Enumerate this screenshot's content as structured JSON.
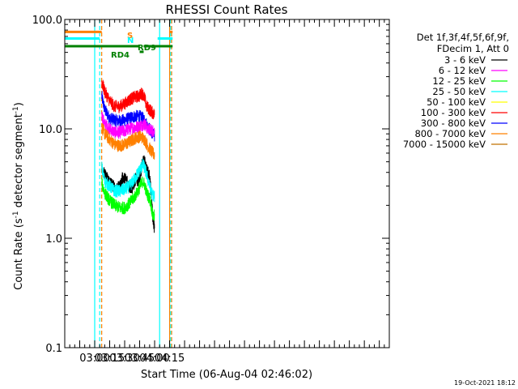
{
  "chart_data": {
    "type": "line",
    "title": "RHESSI Count Rates",
    "xlabel": "Start Time (06-Aug-04 02:46:02)",
    "ylabel_parts": [
      "Count Rate (s",
      "-1",
      " detector segment",
      "-1",
      ")"
    ],
    "yscale": "log",
    "ylim": [
      0.1,
      100.0
    ],
    "xlim_minutes": [
      -30.0,
      295.0
    ],
    "ytick_labels": [
      "0.1",
      "1.0",
      "10.0",
      "100.0"
    ],
    "ytick_values": [
      0.1,
      1.0,
      10.0,
      100.0
    ],
    "xtick_labels": [
      "03:00",
      "03:15",
      "03:30",
      "03:45",
      "04:00",
      "04:15"
    ],
    "xtick_values_minutes": [
      0,
      15,
      30,
      45,
      60,
      75
    ],
    "legend_header": [
      "Det 1f,3f,4f,5f,6f,9f,",
      "FDecim 1, Att 0"
    ],
    "legend_position": "right",
    "series": [
      {
        "name": "3 - 6 keV",
        "color": "#000000",
        "values": [
          [
            7,
            4.5
          ],
          [
            10,
            3.8
          ],
          [
            15,
            3.3
          ],
          [
            20,
            2.9
          ],
          [
            25,
            2.9
          ],
          [
            28,
            3.6
          ],
          [
            32,
            3.4
          ],
          [
            35,
            2.9
          ],
          [
            38,
            2.9
          ],
          [
            41,
            3.5
          ],
          [
            43,
            3.3
          ],
          [
            46,
            3.8
          ],
          [
            48,
            5.0
          ],
          [
            50,
            5.0
          ],
          [
            52,
            4.2
          ],
          [
            55,
            3.7
          ],
          [
            57,
            2.3
          ],
          [
            58,
            1.6
          ],
          [
            59,
            1.4
          ],
          [
            60,
            1.2
          ]
        ]
      },
      {
        "name": "6 - 12 keV",
        "color": "#ff00ff",
        "values": [
          [
            7,
            13.5
          ],
          [
            10,
            11.0
          ],
          [
            15,
            10.0
          ],
          [
            20,
            9.3
          ],
          [
            25,
            9.3
          ],
          [
            30,
            9.6
          ],
          [
            35,
            10.0
          ],
          [
            40,
            10.3
          ],
          [
            45,
            10.5
          ],
          [
            48,
            11.0
          ],
          [
            50,
            11.0
          ],
          [
            53,
            10.0
          ],
          [
            55,
            9.8
          ],
          [
            58,
            9.6
          ],
          [
            60,
            9.5
          ]
        ]
      },
      {
        "name": "12 - 25 keV",
        "color": "#00ff00",
        "values": [
          [
            7,
            3.2
          ],
          [
            10,
            2.6
          ],
          [
            15,
            2.2
          ],
          [
            20,
            2.0
          ],
          [
            25,
            1.9
          ],
          [
            30,
            1.9
          ],
          [
            35,
            2.1
          ],
          [
            40,
            2.4
          ],
          [
            45,
            2.9
          ],
          [
            48,
            3.3
          ],
          [
            50,
            3.1
          ],
          [
            52,
            2.6
          ],
          [
            55,
            2.3
          ],
          [
            57,
            1.9
          ],
          [
            58,
            1.6
          ],
          [
            60,
            1.6
          ]
        ]
      },
      {
        "name": "25 - 50 keV",
        "color": "#00ffff",
        "values": [
          [
            7,
            4.5
          ],
          [
            10,
            3.3
          ],
          [
            15,
            3.0
          ],
          [
            20,
            2.7
          ],
          [
            25,
            2.7
          ],
          [
            30,
            2.8
          ],
          [
            35,
            3.0
          ],
          [
            40,
            3.5
          ],
          [
            45,
            4.2
          ],
          [
            48,
            4.7
          ],
          [
            50,
            4.4
          ],
          [
            52,
            3.8
          ],
          [
            55,
            3.0
          ],
          [
            57,
            2.6
          ],
          [
            58,
            2.5
          ],
          [
            60,
            2.4
          ]
        ]
      },
      {
        "name": "50 - 100 keV",
        "color": "#ffff00",
        "values": []
      },
      {
        "name": "100 - 300 keV",
        "color": "#ff0000",
        "values": [
          [
            7,
            27.0
          ],
          [
            10,
            22.0
          ],
          [
            15,
            18.0
          ],
          [
            20,
            16.0
          ],
          [
            25,
            16.0
          ],
          [
            30,
            17.0
          ],
          [
            35,
            18.5
          ],
          [
            40,
            19.5
          ],
          [
            45,
            20.0
          ],
          [
            46,
            21.0
          ],
          [
            48,
            21.0
          ],
          [
            50,
            19.0
          ],
          [
            52,
            16.0
          ],
          [
            55,
            15.0
          ],
          [
            58,
            14.0
          ],
          [
            60,
            13.5
          ]
        ]
      },
      {
        "name": "300 - 800 keV",
        "color": "#0000ff",
        "values": [
          [
            7,
            20.0
          ],
          [
            10,
            15.0
          ],
          [
            15,
            12.5
          ],
          [
            20,
            12.0
          ],
          [
            25,
            11.8
          ],
          [
            30,
            12.0
          ],
          [
            35,
            12.5
          ],
          [
            40,
            13.0
          ],
          [
            45,
            13.0
          ],
          [
            48,
            12.5
          ],
          [
            50,
            12.0
          ],
          [
            53,
            10.5
          ],
          [
            55,
            10.0
          ],
          [
            58,
            9.0
          ],
          [
            60,
            8.5
          ]
        ]
      },
      {
        "name": "800 - 7000 keV",
        "color": "#ff8000",
        "values": [
          [
            7,
            10.5
          ],
          [
            10,
            9.0
          ],
          [
            15,
            8.0
          ],
          [
            20,
            7.2
          ],
          [
            25,
            7.0
          ],
          [
            30,
            7.2
          ],
          [
            35,
            7.6
          ],
          [
            40,
            8.2
          ],
          [
            45,
            8.5
          ],
          [
            48,
            8.3
          ],
          [
            50,
            8.0
          ],
          [
            53,
            7.0
          ],
          [
            55,
            6.6
          ],
          [
            58,
            6.0
          ],
          [
            60,
            5.8
          ]
        ]
      },
      {
        "name": "7000 - 15000 keV",
        "color": "#c07000",
        "values": []
      }
    ],
    "attenuator_segments": [
      {
        "label": "S",
        "color": "#ff8000",
        "spans": [
          [
            -30,
            7
          ],
          [
            75,
            78
          ]
        ],
        "level": 77
      },
      {
        "label": "N",
        "color": "#00ffff",
        "spans": [
          [
            -30,
            5
          ],
          [
            63,
            78
          ]
        ],
        "level": 67
      },
      {
        "label": "RD9",
        "color": "#008000",
        "spans": [
          [
            0,
            45
          ],
          [
            45,
            49
          ],
          [
            49,
            78
          ]
        ],
        "level": 57
      },
      {
        "label": "RD4",
        "color": "#008000",
        "spans": [
          [
            -30,
            0
          ]
        ],
        "level": 57
      }
    ],
    "event_markers": [
      {
        "time": 0,
        "color": "#00ffff",
        "style": "solid"
      },
      {
        "time": 5,
        "color": "#00ffff",
        "style": "dashed"
      },
      {
        "time": 7,
        "color": "#ff8000",
        "style": "dashed"
      },
      {
        "time": 65,
        "color": "#00ffff",
        "style": "solid"
      },
      {
        "time": 75,
        "color": "#ff8000",
        "style": "solid"
      },
      {
        "time": 76,
        "color": "#00ffff",
        "style": "dashed"
      },
      {
        "time": 77,
        "color": "#ff8000",
        "style": "dashed"
      }
    ]
  },
  "footer_stamp": "19-Oct-2021 18:12"
}
